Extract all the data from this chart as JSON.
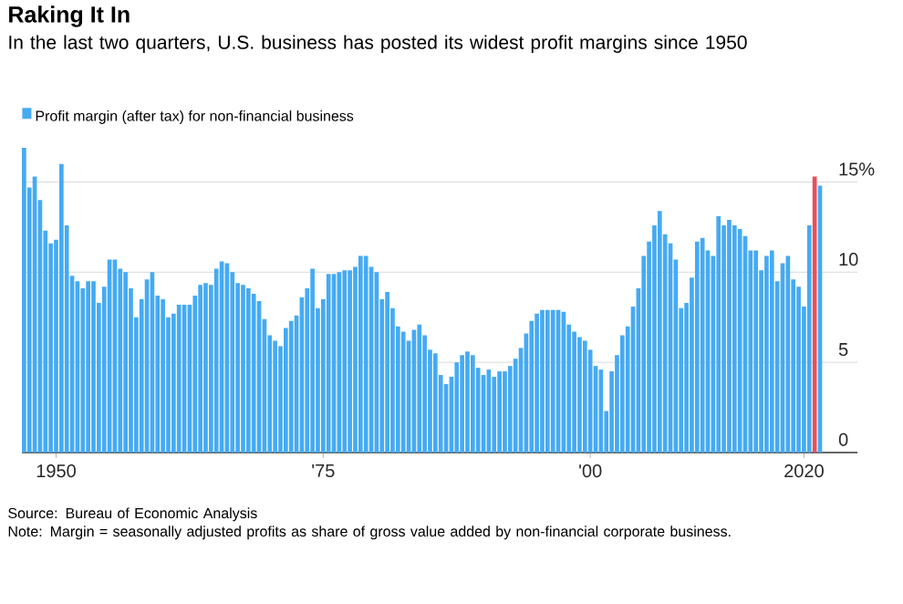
{
  "chart_data": {
    "type": "bar",
    "title": "Raking It In",
    "subtitle": "In the last two quarters, U.S. business has posted its widest profit margins since 1950",
    "series": [
      {
        "name": "Profit margin (after tax) for non-financial business",
        "color": "#45aaf2",
        "x": [
          1947,
          1947.5,
          1948,
          1948.5,
          1949,
          1949.5,
          1950,
          1950.5,
          1951,
          1951.5,
          1952,
          1952.5,
          1953,
          1953.5,
          1954,
          1954.5,
          1955,
          1955.5,
          1956,
          1956.5,
          1957,
          1957.5,
          1958,
          1958.5,
          1959,
          1959.5,
          1960,
          1960.5,
          1961,
          1961.5,
          1962,
          1962.5,
          1963,
          1963.5,
          1964,
          1964.5,
          1965,
          1965.5,
          1966,
          1966.5,
          1967,
          1967.5,
          1968,
          1968.5,
          1969,
          1969.5,
          1970,
          1970.5,
          1971,
          1971.5,
          1972,
          1972.5,
          1973,
          1973.5,
          1974,
          1974.5,
          1975,
          1975.5,
          1976,
          1976.5,
          1977,
          1977.5,
          1978,
          1978.5,
          1979,
          1979.5,
          1980,
          1980.5,
          1981,
          1981.5,
          1982,
          1982.5,
          1983,
          1983.5,
          1984,
          1984.5,
          1985,
          1985.5,
          1986,
          1986.5,
          1987,
          1987.5,
          1988,
          1988.5,
          1989,
          1989.5,
          1990,
          1990.5,
          1991,
          1991.5,
          1992,
          1992.5,
          1993,
          1993.5,
          1994,
          1994.5,
          1995,
          1995.5,
          1996,
          1996.5,
          1997,
          1997.5,
          1998,
          1998.5,
          1999,
          1999.5,
          2000,
          2000.5,
          2001,
          2001.5,
          2002,
          2002.5,
          2003,
          2003.5,
          2004,
          2004.5,
          2005,
          2005.5,
          2006,
          2006.5,
          2007,
          2007.5,
          2008,
          2008.5,
          2009,
          2009.5,
          2010,
          2010.5,
          2011,
          2011.5,
          2012,
          2012.5,
          2013,
          2013.5,
          2014,
          2014.5,
          2015,
          2015.5,
          2016,
          2016.5,
          2017,
          2017.5,
          2018,
          2018.5,
          2019,
          2019.5,
          2020,
          2020.5,
          2021.5
        ],
        "values": [
          16.9,
          14.7,
          15.3,
          14.0,
          12.3,
          11.6,
          11.8,
          16.0,
          12.6,
          9.8,
          9.5,
          9.1,
          9.5,
          9.5,
          8.3,
          9.2,
          10.7,
          10.7,
          10.2,
          10.0,
          9.1,
          7.5,
          8.5,
          9.6,
          10.0,
          8.7,
          8.5,
          7.5,
          7.7,
          8.2,
          8.2,
          8.2,
          8.7,
          9.3,
          9.4,
          9.3,
          10.2,
          10.6,
          10.5,
          10.0,
          9.4,
          9.3,
          9.1,
          8.8,
          8.4,
          7.4,
          6.5,
          6.2,
          5.9,
          6.9,
          7.3,
          7.6,
          8.6,
          9.1,
          10.2,
          8.0,
          8.5,
          9.9,
          9.9,
          10.0,
          10.1,
          10.1,
          10.3,
          10.9,
          10.9,
          10.3,
          10.0,
          8.5,
          8.9,
          8.0,
          7.0,
          6.7,
          6.2,
          6.8,
          7.1,
          6.5,
          5.7,
          5.5,
          4.3,
          3.8,
          4.2,
          5.0,
          5.4,
          5.6,
          5.4,
          4.7,
          4.3,
          4.6,
          4.2,
          4.5,
          4.5,
          4.8,
          5.2,
          5.8,
          6.6,
          7.3,
          7.7,
          7.9,
          7.9,
          7.9,
          7.9,
          7.8,
          7.1,
          6.7,
          6.4,
          6.2,
          5.7,
          4.8,
          4.6,
          2.3,
          4.5,
          5.4,
          6.5,
          7.0,
          8.1,
          9.1,
          10.9,
          11.7,
          12.6,
          13.4,
          12.1,
          11.6,
          10.7,
          8.0,
          8.3,
          9.7,
          11.7,
          11.9,
          11.2,
          10.9,
          13.1,
          12.6,
          12.9,
          12.6,
          12.4,
          12.0,
          11.2,
          11.2,
          10.1,
          10.9,
          11.2,
          9.5,
          10.5,
          10.9,
          9.6,
          9.2,
          8.1,
          12.6,
          14.8
        ]
      },
      {
        "color": "#e8505b",
        "x": [
          2021
        ],
        "values": [
          15.3
        ]
      }
    ],
    "xlim": [
      1946.8,
      2025
    ],
    "xticks": [
      {
        "value": 1950,
        "label": "1950"
      },
      {
        "value": 1975,
        "label": "'75"
      },
      {
        "value": 2000,
        "label": "'00"
      },
      {
        "value": 2020,
        "label": "2020"
      }
    ],
    "ylim": [
      0,
      17
    ],
    "yticks": [
      0,
      5,
      10,
      {
        "value": 15,
        "label": "15%"
      }
    ],
    "grid": "y",
    "legend": "top left",
    "annotations": [
      "Source: Bureau of Economic Analysis",
      "Note: Margin = seasonally adjusted profits as share of gross value added by non-financial corporate business."
    ]
  }
}
